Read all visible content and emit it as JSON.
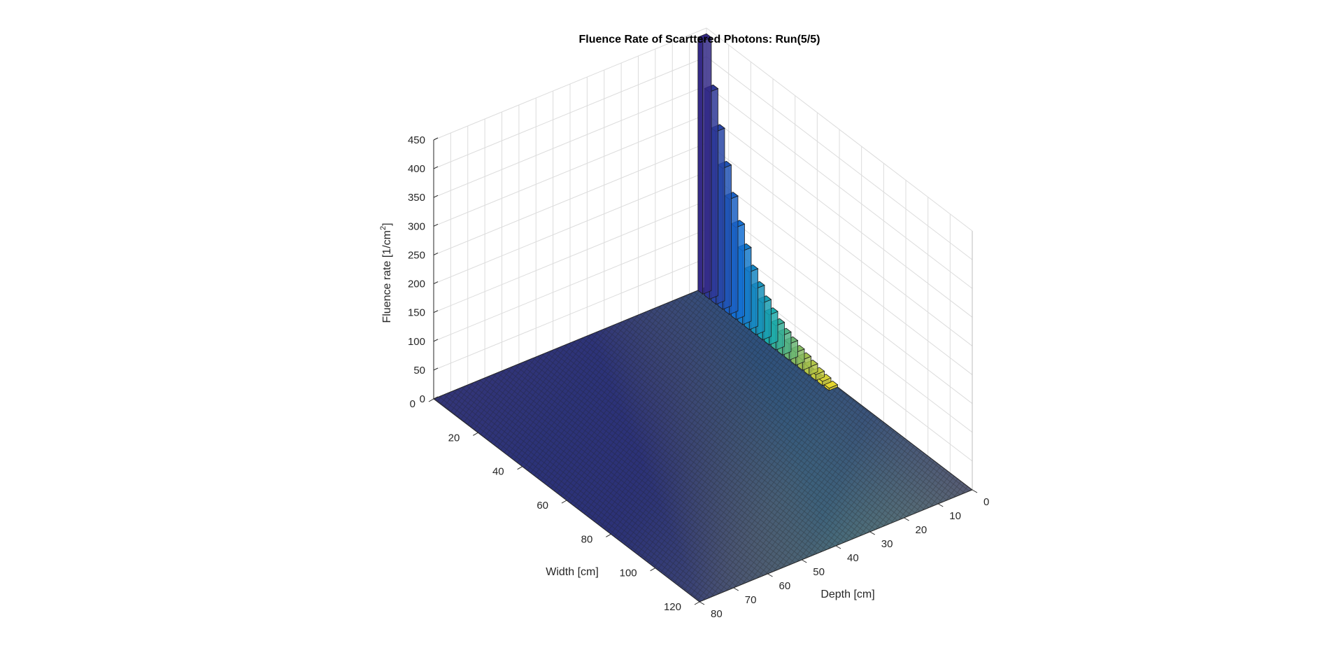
{
  "chart_data": {
    "type": "bar3",
    "title": "Fluence Rate of Scarttered Photons: Run(5/5)",
    "zlabel": "Fluence rate [1/cm",
    "zlabel_sup": "2",
    "zlabel_end": "]",
    "xlabel": "Width [cm]",
    "ylabel": "Depth [cm]",
    "x_range": [
      0,
      120
    ],
    "y_range": [
      0,
      80
    ],
    "z_range": [
      0,
      450
    ],
    "z_ticks": [
      "0",
      "50",
      "100",
      "150",
      "200",
      "250",
      "300",
      "350",
      "400",
      "450"
    ],
    "x_ticks": [
      "0",
      "20",
      "40",
      "60",
      "80",
      "100",
      "120"
    ],
    "y_ticks": [
      "0",
      "10",
      "20",
      "30",
      "40",
      "50",
      "60",
      "70",
      "80"
    ],
    "peak": {
      "x": 0,
      "y": 0,
      "z": 440
    },
    "x_edge_values": [
      {
        "x": 0,
        "z": 440
      },
      {
        "x": 3,
        "z": 360
      },
      {
        "x": 6,
        "z": 300
      },
      {
        "x": 9,
        "z": 245
      },
      {
        "x": 12,
        "z": 200
      },
      {
        "x": 15,
        "z": 160
      },
      {
        "x": 18,
        "z": 128
      },
      {
        "x": 21,
        "z": 100
      },
      {
        "x": 24,
        "z": 80
      },
      {
        "x": 27,
        "z": 64
      },
      {
        "x": 30,
        "z": 52
      },
      {
        "x": 33,
        "z": 42
      },
      {
        "x": 36,
        "z": 34
      },
      {
        "x": 39,
        "z": 28
      },
      {
        "x": 42,
        "z": 22
      },
      {
        "x": 45,
        "z": 18
      },
      {
        "x": 48,
        "z": 14
      },
      {
        "x": 51,
        "z": 10
      },
      {
        "x": 54,
        "z": 7
      },
      {
        "x": 57,
        "z": 4
      }
    ],
    "grid": true,
    "colormap": "parula"
  }
}
